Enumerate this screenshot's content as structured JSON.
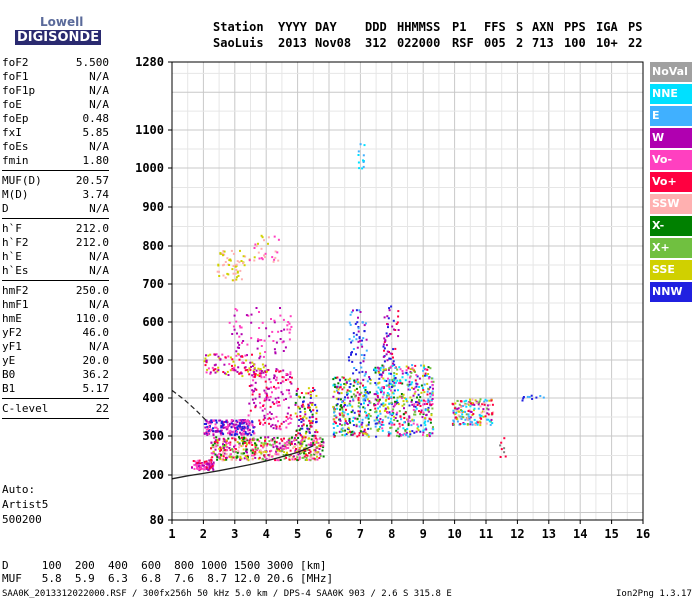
{
  "logo": {
    "line1": "Lowell",
    "line2": "DIGISONDE"
  },
  "header": {
    "labels": [
      "Station",
      "YYYY",
      "DAY",
      "DDD",
      "HHMMSS",
      "P1",
      "FFS",
      "S",
      "AXN",
      "PPS",
      "IGA",
      "PS"
    ],
    "values": [
      "SaoLuis",
      "2013",
      "Nov08",
      "312",
      "022000",
      "RSF",
      "005",
      "2",
      "713",
      "100",
      "10+",
      "22"
    ]
  },
  "params": {
    "group1": [
      {
        "name": "foF2",
        "value": "5.500"
      },
      {
        "name": "foF1",
        "value": "N/A"
      },
      {
        "name": "foF1p",
        "value": "N/A"
      },
      {
        "name": "foE",
        "value": "N/A"
      },
      {
        "name": "foEp",
        "value": "0.48"
      },
      {
        "name": "fxI",
        "value": "5.85"
      },
      {
        "name": "foEs",
        "value": "N/A"
      },
      {
        "name": "fmin",
        "value": "1.80"
      }
    ],
    "group2": [
      {
        "name": "MUF(D)",
        "value": "20.57"
      },
      {
        "name": "M(D)",
        "value": "3.74"
      },
      {
        "name": "D",
        "value": "N/A"
      }
    ],
    "group3": [
      {
        "name": "h`F",
        "value": "212.0"
      },
      {
        "name": "h`F2",
        "value": "212.0"
      },
      {
        "name": "h`E",
        "value": "N/A"
      },
      {
        "name": "h`Es",
        "value": "N/A"
      }
    ],
    "group4": [
      {
        "name": "hmF2",
        "value": "250.0"
      },
      {
        "name": "hmF1",
        "value": "N/A"
      },
      {
        "name": "hmE",
        "value": "110.0"
      },
      {
        "name": "yF2",
        "value": "46.0"
      },
      {
        "name": "yF1",
        "value": "N/A"
      },
      {
        "name": "yE",
        "value": "20.0"
      },
      {
        "name": "B0",
        "value": "36.2"
      },
      {
        "name": "B1",
        "value": "5.17"
      }
    ],
    "group5": [
      {
        "name": "C-level",
        "value": "22"
      }
    ]
  },
  "auto": {
    "line1": "Auto:",
    "line2": "Artist5",
    "line3": "500200"
  },
  "legend": [
    {
      "label": "NoVal",
      "color": "#a0a0a0"
    },
    {
      "label": "NNE",
      "color": "#00e0ff"
    },
    {
      "label": "E",
      "color": "#40b0ff"
    },
    {
      "label": "W",
      "color": "#b000b0"
    },
    {
      "label": "Vo-",
      "color": "#ff40c0"
    },
    {
      "label": "Vo+",
      "color": "#ff0040"
    },
    {
      "label": "SSW",
      "color": "#ffb0b0"
    },
    {
      "label": "X-",
      "color": "#008000"
    },
    {
      "label": "X+",
      "color": "#70c040"
    },
    {
      "label": "SSE",
      "color": "#d0d000"
    },
    {
      "label": "NNW",
      "color": "#2020e0"
    }
  ],
  "footer": {
    "d_row": "D     100  200  400  600  800 1000 1500 3000 [km]",
    "muf_row": "MUF   5.8  5.9  6.3  6.8  7.6  8.7 12.0 20.6 [MHz]",
    "file_info": "SAA0K_2013312022000.RSF / 300fx256h 50 kHz 5.0 km / DPS-4 SAA0K 903 / 2.6 S 315.8 E",
    "version": "Ion2Png 1.3.17"
  },
  "chart_data": {
    "type": "scatter",
    "title": "",
    "xlabel": "",
    "ylabel": "",
    "xlim": [
      1,
      16
    ],
    "ylim": [
      80,
      1280
    ],
    "xticks": [
      "1",
      "2",
      "3",
      "4",
      "5",
      "6",
      "7",
      "8",
      "9",
      "10",
      "11",
      "12",
      "13",
      "14",
      "15",
      "16"
    ],
    "yticks": [
      {
        "value": 80,
        "label": "80"
      },
      {
        "value": 200,
        "label": "200"
      },
      {
        "value": 300,
        "label": "300"
      },
      {
        "value": 400,
        "label": "400"
      },
      {
        "value": 500,
        "label": "500"
      },
      {
        "value": 600,
        "label": "600"
      },
      {
        "value": 700,
        "label": "700"
      },
      {
        "value": 800,
        "label": "800"
      },
      {
        "value": 900,
        "label": "900"
      },
      {
        "value": 1000,
        "label": "1000"
      },
      {
        "value": 1100,
        "label": "1100"
      },
      {
        "value": 1280,
        "label": "1280"
      }
    ],
    "grid": true,
    "clusters": [
      {
        "x0": 1.6,
        "x1": 2.3,
        "y0": 215,
        "y1": 240,
        "count": 80,
        "colors": [
          "#ff0040",
          "#b000b0",
          "#ff40c0"
        ]
      },
      {
        "x0": 2.2,
        "x1": 5.8,
        "y0": 240,
        "y1": 300,
        "count": 520,
        "colors": [
          "#d0d000",
          "#ff0040",
          "#b000b0",
          "#ff40c0",
          "#70c040",
          "#008000",
          "#ffb0b0"
        ]
      },
      {
        "x0": 2.0,
        "x1": 3.6,
        "y0": 305,
        "y1": 345,
        "count": 220,
        "colors": [
          "#b000b0",
          "#ff40c0",
          "#2020e0"
        ]
      },
      {
        "x0": 3.4,
        "x1": 4.8,
        "y0": 320,
        "y1": 480,
        "count": 160,
        "colors": [
          "#b000b0",
          "#ff40c0",
          "#ff0040"
        ]
      },
      {
        "x0": 2.0,
        "x1": 4.0,
        "y0": 460,
        "y1": 520,
        "count": 110,
        "colors": [
          "#d0d000",
          "#ff0040",
          "#ff40c0",
          "#b000b0"
        ]
      },
      {
        "x0": 2.8,
        "x1": 4.8,
        "y0": 520,
        "y1": 640,
        "count": 70,
        "colors": [
          "#b000b0",
          "#ff40c0"
        ]
      },
      {
        "x0": 2.4,
        "x1": 3.3,
        "y0": 710,
        "y1": 790,
        "count": 55,
        "colors": [
          "#d0d000",
          "#ffb0b0"
        ]
      },
      {
        "x0": 3.4,
        "x1": 4.4,
        "y0": 760,
        "y1": 830,
        "count": 30,
        "colors": [
          "#d0d000",
          "#ffb0b0",
          "#ff40c0"
        ]
      },
      {
        "x0": 4.9,
        "x1": 5.6,
        "y0": 300,
        "y1": 430,
        "count": 110,
        "colors": [
          "#ff0040",
          "#b000b0",
          "#008000",
          "#2020e0",
          "#d0d000"
        ]
      },
      {
        "x0": 6.1,
        "x1": 7.3,
        "y0": 300,
        "y1": 460,
        "count": 260,
        "colors": [
          "#40b0ff",
          "#00e0ff",
          "#b000b0",
          "#ff0040",
          "#008000",
          "#2020e0",
          "#d0d000",
          "#70c040"
        ]
      },
      {
        "x0": 6.6,
        "x1": 7.2,
        "y0": 460,
        "y1": 640,
        "count": 60,
        "colors": [
          "#b000b0",
          "#2020e0",
          "#40b0ff"
        ]
      },
      {
        "x0": 6.9,
        "x1": 7.1,
        "y0": 1000,
        "y1": 1070,
        "count": 12,
        "colors": [
          "#40b0ff",
          "#00e0ff"
        ]
      },
      {
        "x0": 7.4,
        "x1": 9.3,
        "y0": 300,
        "y1": 490,
        "count": 480,
        "colors": [
          "#40b0ff",
          "#00e0ff",
          "#b000b0",
          "#ff0040",
          "#008000",
          "#2020e0",
          "#d0d000",
          "#70c040",
          "#ff40c0"
        ]
      },
      {
        "x0": 7.7,
        "x1": 8.2,
        "y0": 490,
        "y1": 660,
        "count": 50,
        "colors": [
          "#b000b0",
          "#2020e0",
          "#ff0040"
        ]
      },
      {
        "x0": 9.9,
        "x1": 11.2,
        "y0": 330,
        "y1": 400,
        "count": 170,
        "colors": [
          "#d0d000",
          "#ffb0b0",
          "#ff0040",
          "#40b0ff",
          "#70c040",
          "#b000b0",
          "#00e0ff"
        ]
      },
      {
        "x0": 11.4,
        "x1": 11.6,
        "y0": 240,
        "y1": 300,
        "count": 8,
        "colors": [
          "#808080",
          "#ff0040"
        ]
      },
      {
        "x0": 12.0,
        "x1": 13.0,
        "y0": 395,
        "y1": 410,
        "count": 10,
        "colors": [
          "#2020e0",
          "#40b0ff"
        ]
      }
    ],
    "profile_curve": [
      [
        1,
        190
      ],
      [
        1.5,
        198
      ],
      [
        2,
        204
      ],
      [
        2.5,
        211
      ],
      [
        3,
        219
      ],
      [
        3.5,
        227
      ],
      [
        4,
        236
      ],
      [
        4.5,
        247
      ],
      [
        5,
        258
      ],
      [
        5.5,
        275
      ]
    ],
    "profile_dashed": [
      [
        1,
        420
      ],
      [
        1.4,
        395
      ],
      [
        1.8,
        365
      ],
      [
        2.1,
        340
      ]
    ]
  }
}
